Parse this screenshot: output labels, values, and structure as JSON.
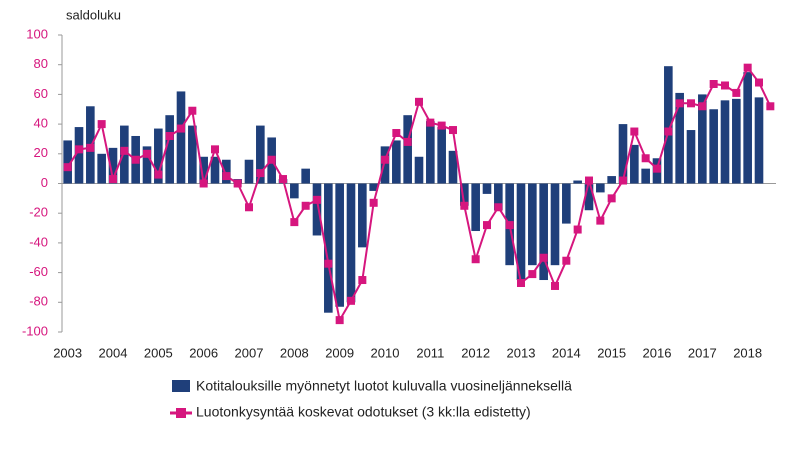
{
  "chart_data": {
    "type": "bar-line",
    "y_label": "saldoluku",
    "categories": [
      "2003",
      null,
      null,
      null,
      "2004",
      null,
      null,
      null,
      "2005",
      null,
      null,
      null,
      "2006",
      null,
      null,
      null,
      "2007",
      null,
      null,
      null,
      "2008",
      null,
      null,
      null,
      "2009",
      null,
      null,
      null,
      "2010",
      null,
      null,
      null,
      "2011",
      null,
      null,
      null,
      "2012",
      null,
      null,
      null,
      "2013",
      null,
      null,
      null,
      "2014",
      null,
      null,
      null,
      "2015",
      null,
      null,
      null,
      "2016",
      null,
      null,
      null,
      "2017",
      null,
      null,
      null,
      "2018",
      null,
      null
    ],
    "series": [
      {
        "name": "Kotitalouksille myönnetyt luotot kuluvalla vuosineljänneksellä",
        "type": "bar",
        "color": "#1f3f7a",
        "values": [
          29,
          38,
          52,
          20,
          24,
          39,
          32,
          25,
          37,
          46,
          62,
          39,
          18,
          18,
          16,
          3,
          16,
          39,
          31,
          3,
          -10,
          10,
          -35,
          -87,
          -83,
          -80,
          -43,
          -5,
          25,
          29,
          46,
          18,
          42,
          38,
          22,
          -15,
          -32,
          -7,
          -18,
          -55,
          -65,
          -55,
          -65,
          -55,
          -27,
          2,
          -18,
          -6,
          5,
          40,
          26,
          10,
          17,
          79,
          61,
          36,
          60,
          50,
          56,
          57,
          75,
          58,
          null
        ]
      },
      {
        "name": "Luotonkysyntää koskevat odotukset (3 kk:lla edistetty)",
        "type": "line",
        "color": "#d6167e",
        "values": [
          11,
          23,
          24,
          40,
          3,
          22,
          16,
          20,
          6,
          32,
          37,
          49,
          0,
          23,
          5,
          0,
          -16,
          7,
          16,
          3,
          -26,
          -15,
          -11,
          -54,
          -92,
          -79,
          -65,
          -13,
          16,
          34,
          28,
          55,
          41,
          39,
          36,
          -15,
          -51,
          -28,
          -16,
          -28,
          -67,
          -61,
          -50,
          -69,
          -52,
          -31,
          2,
          -25,
          -10,
          2,
          35,
          17,
          10,
          35,
          54,
          54,
          52,
          67,
          66,
          61,
          78,
          68,
          52
        ]
      }
    ],
    "ylim": [
      -100,
      100
    ],
    "yticks": [
      -100,
      -80,
      -60,
      -40,
      -20,
      0,
      20,
      40,
      60,
      80,
      100
    ]
  }
}
